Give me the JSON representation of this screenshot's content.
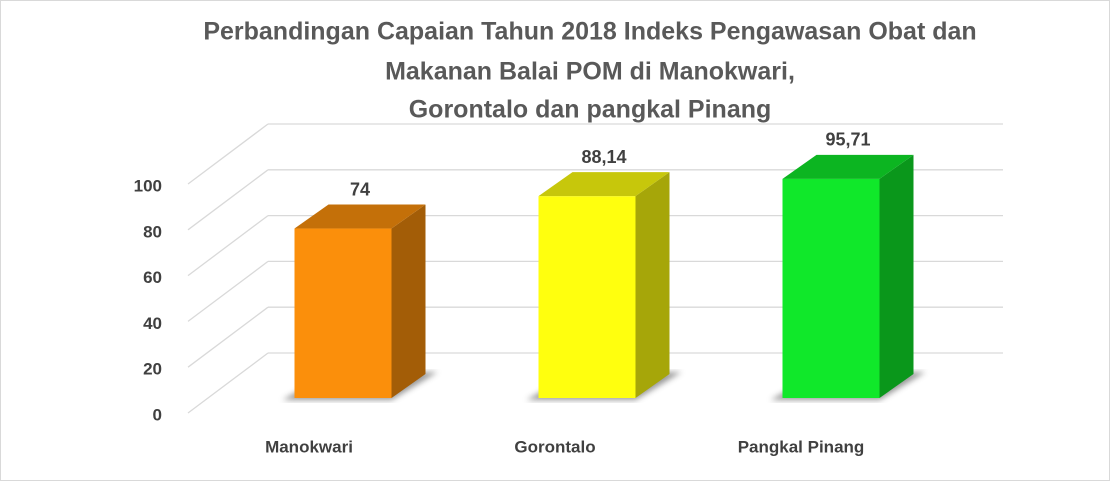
{
  "chart_data": {
    "type": "bar3d",
    "title": [
      "Perbandingan Capaian Tahun 2018  Indeks Pengawasan Obat dan",
      "Makanan Balai POM di Manokwari,",
      "Gorontalo dan pangkal Pinang"
    ],
    "categories": [
      "Manokwari",
      "Gorontalo",
      "Pangkal Pinang"
    ],
    "values": [
      74,
      88.14,
      95.71
    ],
    "value_labels": [
      "74",
      "88,14",
      "95,71"
    ],
    "colors": [
      "#fb8f0b",
      "#ffff0e",
      "#10e82a"
    ],
    "ylim": [
      0,
      100
    ],
    "yticks": [
      0,
      20,
      40,
      60,
      80,
      100
    ],
    "grid": true
  }
}
